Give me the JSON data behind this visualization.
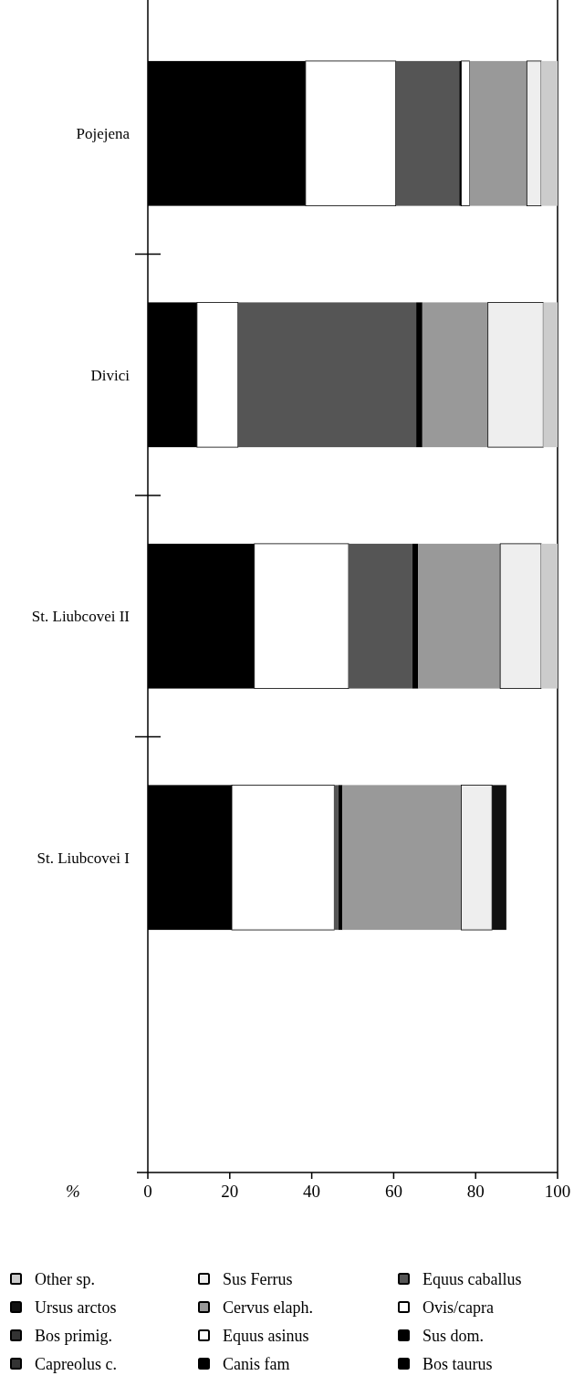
{
  "chart_data": {
    "type": "bar",
    "orientation": "horizontal",
    "stacked": true,
    "xlabel": "%",
    "categories": [
      "Pojejena",
      "Divici",
      "St. Liubcovei II",
      "St. Liubcovei I"
    ],
    "xlim": [
      0,
      100
    ],
    "xticks": [
      0,
      20,
      40,
      60,
      80,
      100
    ],
    "legend": "bottom",
    "series": [
      {
        "name": "Bos taurus",
        "color": "#000000",
        "values": [
          38.5,
          12,
          26,
          20.5
        ]
      },
      {
        "name": "Sus dom.",
        "color": "#000000",
        "values": [
          0,
          0,
          0,
          0
        ]
      },
      {
        "name": "Ovis/capra",
        "color": "#ffffff",
        "values": [
          22,
          10,
          23,
          25
        ]
      },
      {
        "name": "Equus caballus",
        "color": "#555555",
        "values": [
          15.5,
          43.5,
          15.5,
          1
        ]
      },
      {
        "name": "Canis fam",
        "color": "#000000",
        "values": [
          0.5,
          1.5,
          1.5,
          1
        ]
      },
      {
        "name": "Equus asinus",
        "color": "#ffffff",
        "values": [
          2,
          0,
          0,
          0
        ]
      },
      {
        "name": "Cervus elaph.",
        "color": "#999999",
        "values": [
          14,
          16,
          20,
          29
        ]
      },
      {
        "name": "Sus Ferrus",
        "color": "#eeeeee",
        "values": [
          3.5,
          13.5,
          10,
          7.5
        ]
      },
      {
        "name": "Capreolus c.",
        "color": "#333333",
        "values": [
          0,
          0,
          0,
          0
        ]
      },
      {
        "name": "Bos primig.",
        "color": "#333333",
        "values": [
          0,
          0,
          0,
          0
        ]
      },
      {
        "name": "Ursus arctos",
        "color": "#111111",
        "values": [
          0,
          0,
          0,
          3.5
        ]
      },
      {
        "name": "Other sp.",
        "color": "#cccccc",
        "values": [
          4,
          3.5,
          4,
          0
        ]
      }
    ]
  }
}
